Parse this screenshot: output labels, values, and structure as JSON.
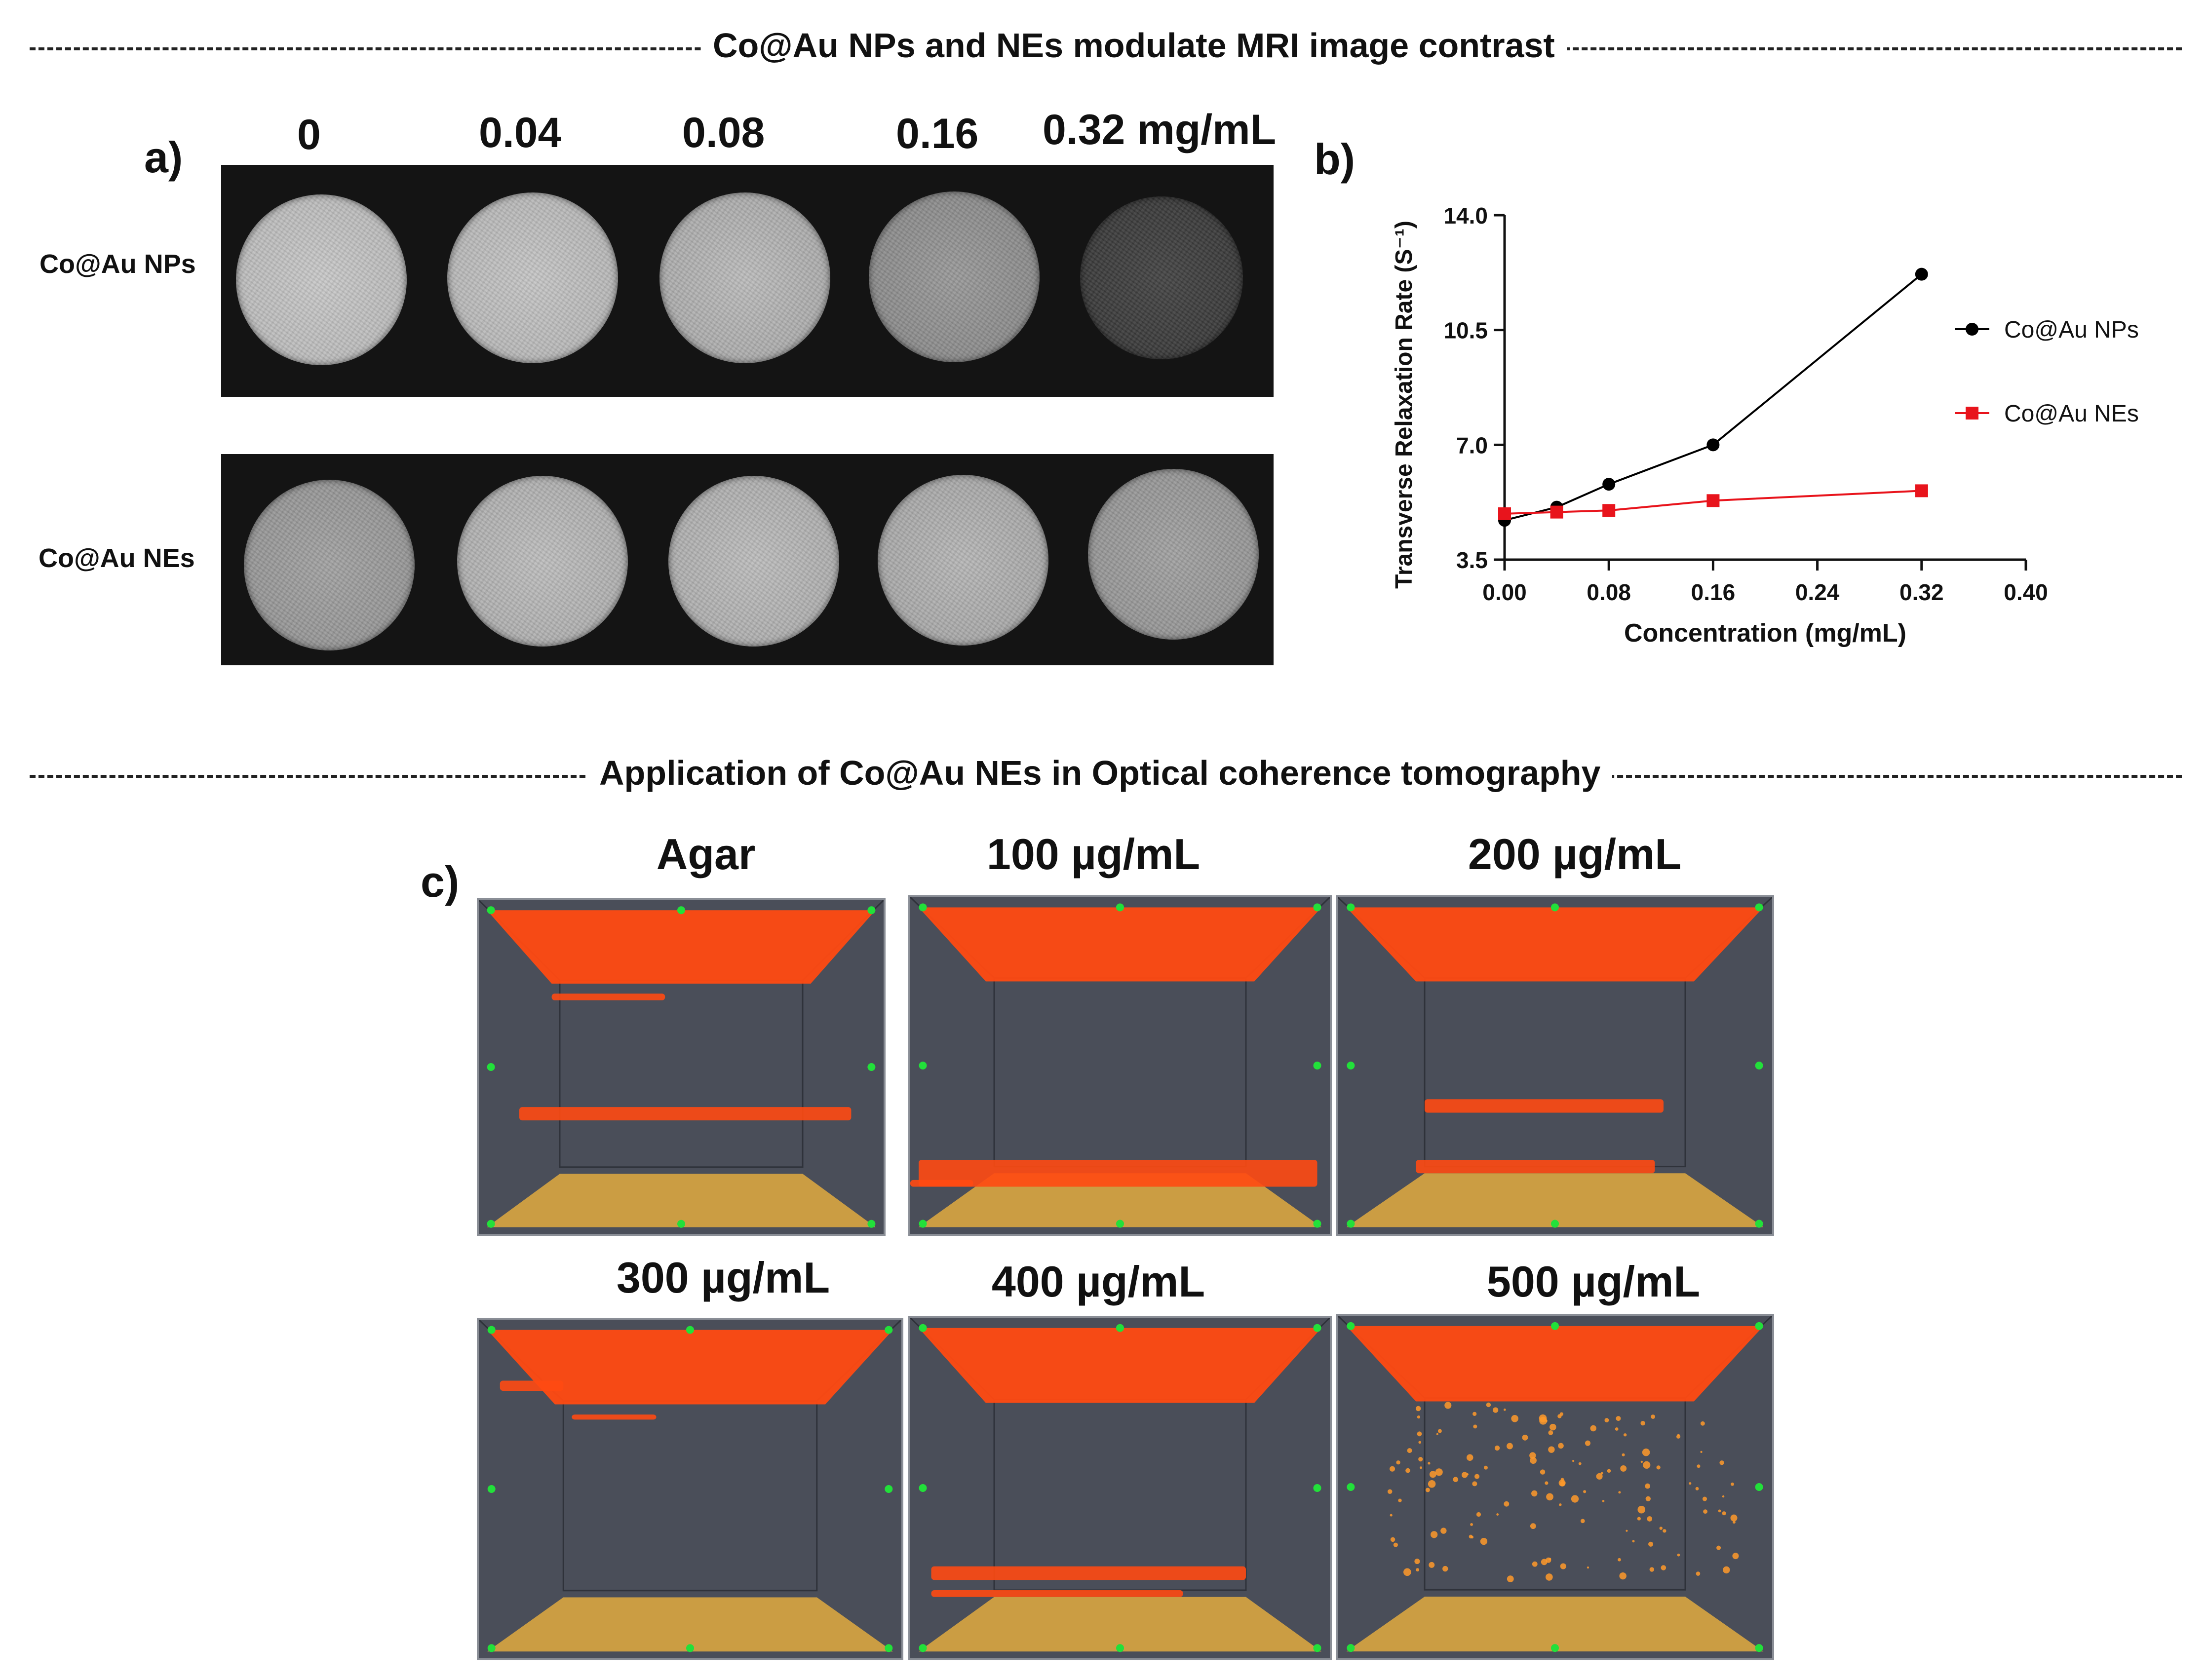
{
  "section_mri": {
    "title": "Co@Au NPs and NEs modulate MRI image contrast"
  },
  "panel_a": {
    "label": "a)",
    "concentrations": [
      "0",
      "0.04",
      "0.08",
      "0.16",
      "0.32 mg/mL"
    ],
    "rows": [
      "Co@Au NPs",
      "Co@Au NEs"
    ]
  },
  "panel_b": {
    "label": "b)"
  },
  "chart_data": {
    "type": "line",
    "title": "",
    "xlabel": "Concentration (mg/mL)",
    "ylabel": "Transverse Relaxation Rate (S⁻¹)",
    "xlim": [
      0,
      0.4
    ],
    "ylim": [
      3.5,
      14.0
    ],
    "xticks": [
      "0.00",
      "0.08",
      "0.16",
      "0.24",
      "0.32",
      "0.40"
    ],
    "yticks": [
      "3.5",
      "7.0",
      "10.5",
      "14.0"
    ],
    "legend_position": "right",
    "series": [
      {
        "name": "Co@Au NPs",
        "color": "#000000",
        "marker": "circle",
        "x": [
          0,
          0.04,
          0.08,
          0.16,
          0.32
        ],
        "y": [
          4.7,
          5.1,
          5.8,
          7.0,
          12.2
        ]
      },
      {
        "name": "Co@Au NEs",
        "color": "#e8141c",
        "marker": "square",
        "x": [
          0,
          0.04,
          0.08,
          0.16,
          0.32
        ],
        "y": [
          4.9,
          4.95,
          5.0,
          5.3,
          5.6
        ]
      }
    ]
  },
  "section_oct": {
    "title": "Application of Co@Au NEs in Optical coherence tomography"
  },
  "panel_c": {
    "label": "c)",
    "samples": [
      "Agar",
      "100 µg/mL",
      "200 µg/mL",
      "300 µg/mL",
      "400 µg/mL",
      "500 µg/mL"
    ]
  },
  "colors": {
    "oct_background": "#4a4e59",
    "oct_signal": "#ff4a12",
    "oct_base": "#d9a640",
    "marker_green": "#22e03a"
  }
}
